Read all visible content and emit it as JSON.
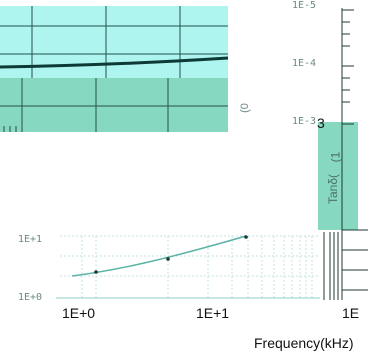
{
  "chart_data": [
    {
      "type": "line",
      "title": "",
      "xlabel": "Frequency(kHz)",
      "ylabel": "",
      "x_scale": "log",
      "y_scale": "log",
      "x_ticks": [
        "1E+0",
        "1E+1",
        "1E"
      ],
      "y_ticks": [
        "1E+1",
        "1E+0"
      ],
      "series": [
        {
          "x": [
            0.62,
            1.0,
            3.0,
            12.0
          ],
          "y": [
            1.9,
            2.5,
            3.9,
            8.6
          ]
        }
      ],
      "grid": true
    },
    {
      "type": "line",
      "title": "",
      "ylabel": "(0",
      "series": [
        {
          "x": [
            1,
            10,
            100
          ],
          "y": [
            1,
            1,
            1
          ]
        }
      ],
      "grid": true
    },
    {
      "type": "line",
      "title": "",
      "ylabel": "Tanδ(",
      "y_scale": "log",
      "y_ticks": [
        "1E-5",
        "1E-4",
        "1E-3"
      ],
      "grid": true
    }
  ],
  "labels": {
    "cut_frag": "3",
    "tanlabel_frag": "(1"
  },
  "colors": {
    "cyan_fill": "#aef4ef",
    "teal_band": "#86d8c0",
    "teal_line": "#5ab3a6",
    "dark_curve": "#0d3a35",
    "axis": "#1f3a36"
  }
}
